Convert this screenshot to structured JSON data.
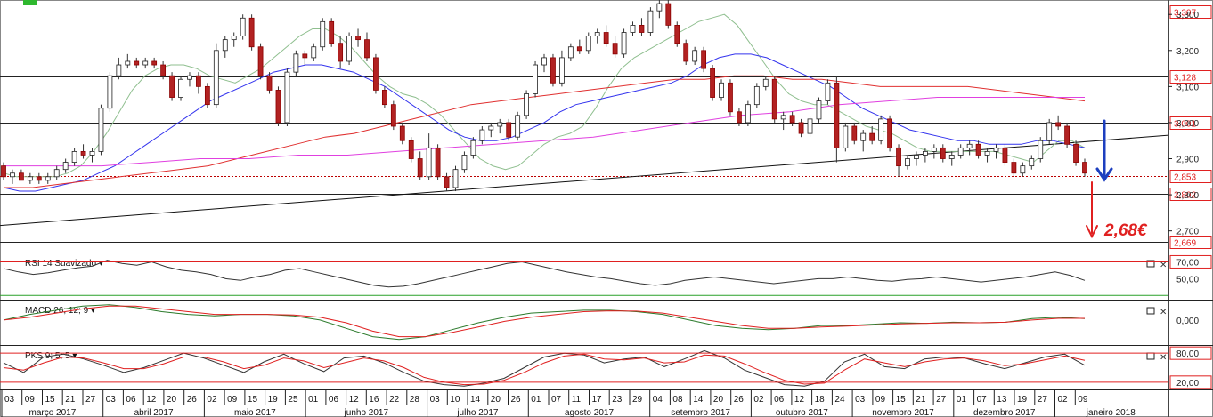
{
  "chart_data": {
    "type": "candlestick",
    "price_axis": {
      "ticks": [
        "3,300",
        "3,200",
        "3,100",
        "3,000",
        "2,900",
        "2,800",
        "2,700"
      ],
      "ylim": [
        2.64,
        3.34
      ],
      "levels": [
        {
          "label": "3,307",
          "value": 3.307,
          "color": "#e02020"
        },
        {
          "label": "3,128",
          "value": 3.128,
          "color": "#e02020"
        },
        {
          "label": "3,001",
          "value": 3.001,
          "color": "#e02020"
        },
        {
          "label": "2,853",
          "value": 2.853,
          "color": "#e02020"
        },
        {
          "label": "2,802",
          "value": 2.802,
          "color": "#e02020"
        },
        {
          "label": "2,669",
          "value": 2.669,
          "color": "#e02020"
        }
      ]
    },
    "annotation": {
      "text": "2,68€",
      "color": "#e02020"
    },
    "panels": [
      {
        "name": "RSI 14 Suavizado",
        "levels": [
          "70,00",
          "50,00"
        ]
      },
      {
        "name": "MACD 26; 12; 9",
        "levels": [
          "0,000"
        ]
      },
      {
        "name": "PKS 9; 5; 5",
        "levels": [
          "80,00",
          "20,00"
        ]
      }
    ],
    "x_days": [
      "03",
      "09",
      "15",
      "21",
      "27",
      "03",
      "06",
      "12",
      "20",
      "26",
      "02",
      "09",
      "15",
      "19",
      "25",
      "01",
      "06",
      "12",
      "16",
      "22",
      "28",
      "03",
      "10",
      "14",
      "20",
      "26",
      "01",
      "07",
      "11",
      "17",
      "23",
      "29",
      "04",
      "08",
      "14",
      "20",
      "26",
      "02",
      "06",
      "12",
      "18",
      "24",
      "03",
      "09",
      "15",
      "21",
      "27",
      "01",
      "07",
      "13",
      "19",
      "27",
      "02",
      "09"
    ],
    "x_months": [
      "março 2017",
      "abril 2017",
      "maio 2017",
      "junho 2017",
      "julho 2017",
      "agosto 2017",
      "setembro 2017",
      "outubro 2017",
      "novembro 2017",
      "dezembro 2017",
      "janeiro 2018"
    ],
    "candles": [
      [
        2.88,
        2.89,
        2.84,
        2.85
      ],
      [
        2.85,
        2.87,
        2.83,
        2.86
      ],
      [
        2.86,
        2.87,
        2.84,
        2.84
      ],
      [
        2.84,
        2.86,
        2.83,
        2.85
      ],
      [
        2.85,
        2.86,
        2.83,
        2.84
      ],
      [
        2.84,
        2.86,
        2.83,
        2.85
      ],
      [
        2.85,
        2.88,
        2.84,
        2.87
      ],
      [
        2.87,
        2.9,
        2.86,
        2.89
      ],
      [
        2.89,
        2.93,
        2.88,
        2.92
      ],
      [
        2.92,
        2.94,
        2.9,
        2.91
      ],
      [
        2.91,
        2.93,
        2.89,
        2.92
      ],
      [
        2.92,
        3.05,
        2.91,
        3.04
      ],
      [
        3.04,
        3.14,
        3.03,
        3.13
      ],
      [
        3.13,
        3.18,
        3.12,
        3.16
      ],
      [
        3.16,
        3.19,
        3.15,
        3.17
      ],
      [
        3.17,
        3.18,
        3.15,
        3.16
      ],
      [
        3.16,
        3.18,
        3.15,
        3.17
      ],
      [
        3.17,
        3.18,
        3.15,
        3.16
      ],
      [
        3.16,
        3.17,
        3.12,
        3.13
      ],
      [
        3.13,
        3.14,
        3.06,
        3.07
      ],
      [
        3.07,
        3.13,
        3.06,
        3.12
      ],
      [
        3.12,
        3.14,
        3.1,
        3.13
      ],
      [
        3.13,
        3.14,
        3.08,
        3.1
      ],
      [
        3.1,
        3.11,
        3.04,
        3.05
      ],
      [
        3.05,
        3.22,
        3.04,
        3.2
      ],
      [
        3.2,
        3.24,
        3.18,
        3.23
      ],
      [
        3.23,
        3.25,
        3.21,
        3.24
      ],
      [
        3.24,
        3.3,
        3.23,
        3.29
      ],
      [
        3.29,
        3.3,
        3.2,
        3.21
      ],
      [
        3.21,
        3.22,
        3.12,
        3.13
      ],
      [
        3.13,
        3.14,
        3.08,
        3.09
      ],
      [
        3.09,
        3.1,
        2.99,
        3.0
      ],
      [
        3.0,
        3.15,
        2.99,
        3.14
      ],
      [
        3.14,
        3.2,
        3.13,
        3.19
      ],
      [
        3.19,
        3.2,
        3.16,
        3.18
      ],
      [
        3.18,
        3.22,
        3.17,
        3.21
      ],
      [
        3.21,
        3.29,
        3.2,
        3.28
      ],
      [
        3.28,
        3.29,
        3.21,
        3.22
      ],
      [
        3.22,
        3.24,
        3.15,
        3.17
      ],
      [
        3.17,
        3.25,
        3.16,
        3.24
      ],
      [
        3.24,
        3.26,
        3.21,
        3.23
      ],
      [
        3.23,
        3.25,
        3.17,
        3.18
      ],
      [
        3.18,
        3.19,
        3.08,
        3.09
      ],
      [
        3.09,
        3.1,
        3.04,
        3.05
      ],
      [
        3.05,
        3.06,
        2.98,
        2.99
      ],
      [
        2.99,
        3.0,
        2.94,
        2.95
      ],
      [
        2.95,
        2.96,
        2.89,
        2.9
      ],
      [
        2.9,
        2.92,
        2.84,
        2.85
      ],
      [
        2.85,
        2.97,
        2.84,
        2.93
      ],
      [
        2.93,
        2.94,
        2.84,
        2.85
      ],
      [
        2.85,
        2.86,
        2.81,
        2.82
      ],
      [
        2.82,
        2.88,
        2.81,
        2.87
      ],
      [
        2.87,
        2.92,
        2.86,
        2.91
      ],
      [
        2.91,
        2.96,
        2.9,
        2.95
      ],
      [
        2.95,
        2.99,
        2.94,
        2.98
      ],
      [
        2.98,
        3.0,
        2.96,
        2.99
      ],
      [
        2.99,
        3.01,
        2.97,
        3.0
      ],
      [
        3.0,
        3.01,
        2.95,
        2.96
      ],
      [
        2.96,
        3.03,
        2.95,
        3.02
      ],
      [
        3.02,
        3.09,
        3.01,
        3.08
      ],
      [
        3.08,
        3.17,
        3.07,
        3.16
      ],
      [
        3.16,
        3.19,
        3.14,
        3.18
      ],
      [
        3.18,
        3.19,
        3.1,
        3.11
      ],
      [
        3.11,
        3.2,
        3.1,
        3.18
      ],
      [
        3.18,
        3.22,
        3.17,
        3.21
      ],
      [
        3.21,
        3.23,
        3.19,
        3.2
      ],
      [
        3.2,
        3.25,
        3.19,
        3.24
      ],
      [
        3.24,
        3.26,
        3.22,
        3.25
      ],
      [
        3.25,
        3.27,
        3.21,
        3.22
      ],
      [
        3.22,
        3.24,
        3.18,
        3.19
      ],
      [
        3.19,
        3.26,
        3.18,
        3.25
      ],
      [
        3.25,
        3.28,
        3.24,
        3.27
      ],
      [
        3.27,
        3.29,
        3.24,
        3.25
      ],
      [
        3.25,
        3.32,
        3.24,
        3.31
      ],
      [
        3.31,
        3.34,
        3.29,
        3.33
      ],
      [
        3.33,
        3.35,
        3.26,
        3.27
      ],
      [
        3.27,
        3.28,
        3.21,
        3.22
      ],
      [
        3.22,
        3.23,
        3.16,
        3.17
      ],
      [
        3.17,
        3.21,
        3.16,
        3.2
      ],
      [
        3.2,
        3.21,
        3.14,
        3.15
      ],
      [
        3.15,
        3.16,
        3.06,
        3.07
      ],
      [
        3.07,
        3.12,
        3.06,
        3.11
      ],
      [
        3.11,
        3.12,
        3.02,
        3.03
      ],
      [
        3.03,
        3.04,
        2.99,
        3.0
      ],
      [
        3.0,
        3.06,
        2.99,
        3.05
      ],
      [
        3.05,
        3.11,
        3.04,
        3.1
      ],
      [
        3.1,
        3.13,
        3.09,
        3.12
      ],
      [
        3.12,
        3.13,
        3.0,
        3.01
      ],
      [
        3.01,
        3.03,
        2.98,
        3.02
      ],
      [
        3.02,
        3.03,
        2.99,
        3.0
      ],
      [
        3.0,
        3.01,
        2.96,
        2.97
      ],
      [
        2.97,
        3.02,
        2.96,
        3.01
      ],
      [
        3.01,
        3.07,
        3.0,
        3.06
      ],
      [
        3.06,
        3.12,
        3.05,
        3.11
      ],
      [
        3.11,
        3.13,
        2.89,
        2.93
      ],
      [
        2.93,
        3.0,
        2.92,
        2.99
      ],
      [
        2.99,
        3.0,
        2.94,
        2.95
      ],
      [
        2.95,
        2.98,
        2.92,
        2.97
      ],
      [
        2.97,
        2.99,
        2.94,
        2.95
      ],
      [
        2.95,
        3.02,
        2.94,
        3.01
      ],
      [
        3.01,
        3.02,
        2.92,
        2.93
      ],
      [
        2.93,
        2.94,
        2.85,
        2.88
      ],
      [
        2.88,
        2.91,
        2.87,
        2.9
      ],
      [
        2.9,
        2.92,
        2.88,
        2.91
      ],
      [
        2.91,
        2.93,
        2.89,
        2.92
      ],
      [
        2.92,
        2.94,
        2.9,
        2.93
      ],
      [
        2.93,
        2.94,
        2.89,
        2.9
      ],
      [
        2.9,
        2.92,
        2.88,
        2.91
      ],
      [
        2.91,
        2.94,
        2.9,
        2.93
      ],
      [
        2.93,
        2.95,
        2.91,
        2.94
      ],
      [
        2.94,
        2.95,
        2.9,
        2.91
      ],
      [
        2.91,
        2.93,
        2.89,
        2.92
      ],
      [
        2.92,
        2.94,
        2.9,
        2.93
      ],
      [
        2.93,
        2.94,
        2.88,
        2.89
      ],
      [
        2.89,
        2.9,
        2.85,
        2.86
      ],
      [
        2.86,
        2.89,
        2.85,
        2.88
      ],
      [
        2.88,
        2.91,
        2.87,
        2.9
      ],
      [
        2.9,
        2.96,
        2.89,
        2.95
      ],
      [
        2.95,
        3.01,
        2.94,
        3.0
      ],
      [
        3.0,
        3.02,
        2.98,
        2.99
      ],
      [
        2.99,
        3.0,
        2.93,
        2.94
      ],
      [
        2.94,
        2.95,
        2.88,
        2.89
      ],
      [
        2.89,
        2.9,
        2.85,
        2.86
      ]
    ],
    "overlays": [
      {
        "color": "#8fbf8f",
        "values": [
          2.86,
          2.85,
          2.85,
          2.85,
          2.85,
          2.86,
          2.88,
          2.92,
          2.97,
          3.03,
          3.09,
          3.13,
          3.15,
          3.16,
          3.16,
          3.15,
          3.13,
          3.12,
          3.11,
          3.13,
          3.15,
          3.18,
          3.21,
          3.24,
          3.26,
          3.26,
          3.24,
          3.21,
          3.17,
          3.13,
          3.1,
          3.08,
          3.07,
          3.05,
          3.02,
          2.98,
          2.94,
          2.9,
          2.88,
          2.87,
          2.88,
          2.91,
          2.94,
          2.96,
          2.97,
          2.99,
          3.04,
          3.1,
          3.15,
          3.18,
          3.2,
          3.22,
          3.24,
          3.26,
          3.28,
          3.29,
          3.3,
          3.27,
          3.22,
          3.17,
          3.12,
          3.08,
          3.06,
          3.05,
          3.05,
          3.03,
          3.01,
          2.99,
          2.98,
          2.97,
          2.95,
          2.93,
          2.92,
          2.92,
          2.92,
          2.92,
          2.92,
          2.92,
          2.91,
          2.9,
          2.89,
          2.92,
          2.95,
          2.95,
          2.93
        ]
      },
      {
        "color": "#3333ee",
        "values": [
          2.82,
          2.81,
          2.81,
          2.82,
          2.83,
          2.84,
          2.86,
          2.88,
          2.91,
          2.94,
          2.97,
          3.0,
          3.03,
          3.06,
          3.08,
          3.1,
          3.12,
          3.14,
          3.15,
          3.16,
          3.16,
          3.15,
          3.14,
          3.12,
          3.1,
          3.07,
          3.04,
          3.01,
          2.98,
          2.96,
          2.95,
          2.95,
          2.96,
          2.98,
          3.0,
          3.03,
          3.05,
          3.06,
          3.07,
          3.08,
          3.09,
          3.1,
          3.11,
          3.13,
          3.16,
          3.18,
          3.19,
          3.19,
          3.18,
          3.16,
          3.14,
          3.12,
          3.1,
          3.07,
          3.04,
          3.02,
          3.0,
          2.98,
          2.97,
          2.96,
          2.95,
          2.95,
          2.94,
          2.94,
          2.94,
          2.95,
          2.95,
          2.94,
          2.93
        ]
      },
      {
        "color": "#e03030",
        "values": [
          2.82,
          2.82,
          2.83,
          2.84,
          2.85,
          2.86,
          2.87,
          2.88,
          2.9,
          2.92,
          2.94,
          2.96,
          2.97,
          2.99,
          3.01,
          3.03,
          3.05,
          3.06,
          3.07,
          3.08,
          3.09,
          3.1,
          3.11,
          3.12,
          3.12,
          3.13,
          3.13,
          3.12,
          3.12,
          3.11,
          3.1,
          3.1,
          3.1,
          3.1,
          3.09,
          3.08,
          3.07,
          3.06
        ]
      },
      {
        "color": "#e040e0",
        "values": [
          2.88,
          2.88,
          2.88,
          2.89,
          2.9,
          2.9,
          2.91,
          2.91,
          2.92,
          2.93,
          2.94,
          2.95,
          2.96,
          2.98,
          3.0,
          3.02,
          3.03,
          3.05,
          3.06,
          3.07,
          3.07,
          3.07,
          3.07
        ]
      }
    ],
    "trendline": {
      "from": [
        0,
        2.715
      ],
      "to": [
        1.0,
        2.965
      ],
      "color": "#111"
    },
    "rsi": [
      62,
      58,
      55,
      57,
      60,
      63,
      65,
      72,
      68,
      66,
      70,
      64,
      60,
      58,
      55,
      50,
      48,
      52,
      55,
      60,
      62,
      58,
      54,
      50,
      46,
      42,
      40,
      41,
      44,
      48,
      52,
      56,
      60,
      64,
      68,
      70,
      66,
      62,
      58,
      55,
      52,
      50,
      47,
      44,
      42,
      44,
      48,
      50,
      52,
      50,
      48,
      46,
      44,
      46,
      48,
      50,
      50,
      52,
      50,
      48,
      47,
      49,
      50,
      52,
      50,
      48,
      46,
      48,
      50,
      52,
      55,
      58,
      54,
      48
    ],
    "macd": {
      "black": [
        0.0,
        0.02,
        0.035,
        0.05,
        0.055,
        0.045,
        0.03,
        0.02,
        0.015,
        0.02,
        0.02,
        0.015,
        0.0,
        -0.03,
        -0.06,
        -0.07,
        -0.06,
        -0.035,
        -0.01,
        0.01,
        0.025,
        0.03,
        0.035,
        0.035,
        0.03,
        0.02,
        0.0,
        -0.02,
        -0.03,
        -0.035,
        -0.03,
        -0.02,
        -0.02,
        -0.015,
        -0.01,
        -0.012,
        -0.008,
        -0.01,
        -0.008,
        0.005,
        0.01,
        0.005
      ],
      "red": [
        0.0,
        0.01,
        0.025,
        0.04,
        0.05,
        0.05,
        0.04,
        0.03,
        0.02,
        0.02,
        0.02,
        0.018,
        0.01,
        -0.01,
        -0.04,
        -0.06,
        -0.06,
        -0.045,
        -0.025,
        -0.005,
        0.01,
        0.02,
        0.03,
        0.033,
        0.032,
        0.025,
        0.01,
        -0.005,
        -0.02,
        -0.03,
        -0.03,
        -0.025,
        -0.022,
        -0.018,
        -0.014,
        -0.012,
        -0.01,
        -0.01,
        -0.008,
        0.0,
        0.006,
        0.006
      ]
    },
    "pks": {
      "black": [
        60,
        40,
        72,
        78,
        68,
        55,
        40,
        50,
        65,
        80,
        70,
        55,
        40,
        62,
        78,
        58,
        42,
        70,
        74,
        60,
        40,
        22,
        15,
        12,
        18,
        28,
        50,
        72,
        80,
        76,
        60,
        68,
        72,
        52,
        68,
        85,
        70,
        45,
        30,
        15,
        12,
        22,
        62,
        78,
        52,
        48,
        68,
        72,
        70,
        58,
        48,
        60,
        72,
        78,
        55
      ],
      "red": [
        50,
        45,
        60,
        72,
        70,
        60,
        48,
        48,
        58,
        72,
        72,
        62,
        48,
        55,
        70,
        64,
        50,
        60,
        70,
        64,
        50,
        30,
        20,
        15,
        16,
        24,
        40,
        60,
        74,
        78,
        68,
        66,
        70,
        60,
        62,
        76,
        74,
        58,
        40,
        24,
        16,
        18,
        45,
        68,
        60,
        52,
        62,
        68,
        70,
        64,
        54,
        58,
        66,
        74,
        65
      ]
    }
  }
}
